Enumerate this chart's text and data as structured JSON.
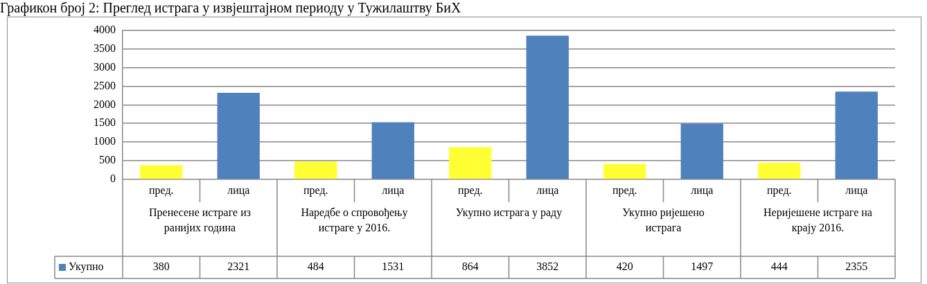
{
  "chart_data": {
    "type": "bar",
    "title": "Графикон број 2: Преглед истрага у извјештајном периоду у Тужилаштву БиХ",
    "categories": [
      "пред.",
      "лица",
      "пред.",
      "лица",
      "пред.",
      "лица",
      "пред.",
      "лица",
      "пред.",
      "лица"
    ],
    "series": [
      {
        "name": "Укупно",
        "color": "#4f81bd",
        "colors": [
          "#ffff33",
          "#4f81bd",
          "#ffff33",
          "#4f81bd",
          "#ffff33",
          "#4f81bd",
          "#ffff33",
          "#4f81bd",
          "#ffff33",
          "#4f81bd"
        ],
        "values": [
          380,
          2321,
          484,
          1531,
          864,
          3852,
          420,
          1497,
          444,
          2355
        ]
      }
    ],
    "annotations": [
      "Пренесене истраге из ранијих година",
      "Наредбе о спровођењу истраге у 2016.",
      "Укупно истрага у раду",
      "Укупно ријешено истрага",
      "Неријешене истраге на крају 2016."
    ],
    "ylim": [
      0,
      4000
    ],
    "yticks": [
      0,
      500,
      1000,
      1500,
      2000,
      2500,
      3000,
      3500,
      4000
    ],
    "grid": "y",
    "legend": "bottom",
    "data_labels": true
  }
}
